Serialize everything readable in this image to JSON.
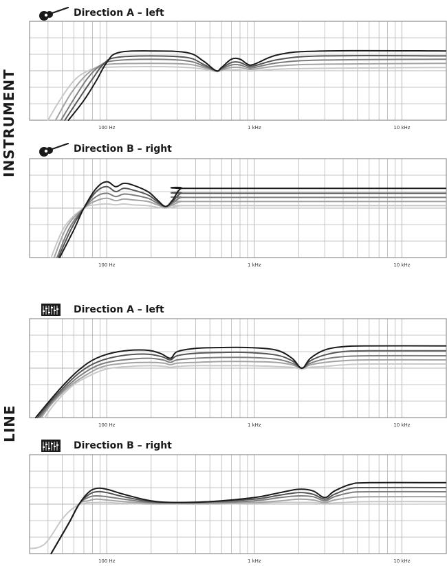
{
  "sections": {
    "instrument": "INSTRUMENT",
    "line": "LINE"
  },
  "panels": [
    {
      "title": "Direction A – left",
      "icon": "guitar-icon"
    },
    {
      "title": "Direction B – right",
      "icon": "guitar-icon"
    },
    {
      "title": "Direction A – left",
      "icon": "mixer-icon"
    },
    {
      "title": "Direction B – right",
      "icon": "mixer-icon"
    }
  ],
  "colors": {
    "grid": "#b5b5b5",
    "frame": "#7a7a7a",
    "series": [
      "#1a1a1a",
      "#555555",
      "#7d7d7d",
      "#a2a2a2",
      "#c8c8c8"
    ]
  },
  "chart_data": [
    {
      "type": "line",
      "title": "Direction A – left",
      "x_scale": "log",
      "xlim": [
        30,
        20000
      ],
      "ylim": [
        -3,
        3
      ],
      "grid": true,
      "x_tick_labels": [
        {
          "x": 100,
          "label": "100 Hz"
        },
        {
          "x": 1000,
          "label": "1 kHz"
        },
        {
          "x": 10000,
          "label": "10 kHz"
        }
      ],
      "series": [
        {
          "x": [
            55,
            70,
            85,
            100,
            120,
            200,
            350,
            450,
            550,
            600,
            700,
            800,
            900,
            1000,
            1500,
            3000,
            20000
          ],
          "y": [
            -3,
            -1.8,
            -0.6,
            0.5,
            1.1,
            1.2,
            1.1,
            0.6,
            0,
            0.2,
            0.7,
            0.7,
            0.4,
            0.4,
            1,
            1.2,
            1.2
          ]
        },
        {
          "x": [
            52,
            66,
            80,
            95,
            115,
            200,
            350,
            450,
            550,
            600,
            700,
            800,
            900,
            1000,
            1500,
            3000,
            20000
          ],
          "y": [
            -3,
            -1.6,
            -0.5,
            0.4,
            0.8,
            0.9,
            0.8,
            0.4,
            0,
            0.15,
            0.5,
            0.5,
            0.3,
            0.3,
            0.7,
            0.9,
            0.9
          ]
        },
        {
          "x": [
            49,
            62,
            75,
            90,
            110,
            200,
            350,
            450,
            550,
            600,
            700,
            800,
            900,
            1000,
            1500,
            3000,
            20000
          ],
          "y": [
            -3,
            -1.5,
            -0.4,
            0.3,
            0.6,
            0.7,
            0.6,
            0.3,
            0,
            0.1,
            0.35,
            0.35,
            0.2,
            0.2,
            0.5,
            0.65,
            0.7
          ]
        },
        {
          "x": [
            45,
            57,
            70,
            85,
            105,
            200,
            350,
            450,
            550,
            600,
            700,
            800,
            900,
            1000,
            1500,
            3000,
            20000
          ],
          "y": [
            -3,
            -1.4,
            -0.4,
            0.2,
            0.4,
            0.45,
            0.4,
            0.2,
            0,
            0.05,
            0.2,
            0.2,
            0.1,
            0.1,
            0.3,
            0.4,
            0.45
          ]
        },
        {
          "x": [
            40,
            48,
            60,
            75,
            95,
            200,
            350,
            450,
            550,
            600,
            700,
            800,
            900,
            1000,
            1500,
            3000,
            20000
          ],
          "y": [
            -3,
            -1.8,
            -0.6,
            0,
            0.2,
            0.25,
            0.2,
            0.1,
            -0.05,
            0,
            0.05,
            0.05,
            0,
            0,
            0.1,
            0.15,
            0.2
          ]
        }
      ]
    },
    {
      "type": "line",
      "title": "Direction B – right",
      "x_scale": "log",
      "xlim": [
        30,
        20000
      ],
      "ylim": [
        -3,
        3
      ],
      "grid": true,
      "x_tick_labels": [
        {
          "x": 100,
          "label": "100 Hz"
        },
        {
          "x": 1000,
          "label": "1 kHz"
        },
        {
          "x": 10000,
          "label": "10 kHz"
        }
      ],
      "series": [
        {
          "x": [
            48,
            60,
            70,
            85,
            100,
            115,
            130,
            150,
            190,
            220,
            250,
            280,
            320,
            400,
            20000
          ],
          "y": [
            -3,
            -1.3,
            0,
            1.2,
            1.6,
            1.3,
            1.5,
            1.4,
            1.0,
            0.5,
            0.1,
            0.5,
            1.2,
            1.2,
            1.2
          ]
        },
        {
          "x": [
            47,
            58,
            70,
            85,
            100,
            115,
            130,
            150,
            190,
            220,
            250,
            280,
            320,
            400,
            20000
          ],
          "y": [
            -3,
            -1.2,
            0,
            1.0,
            1.3,
            1.0,
            1.2,
            1.1,
            0.8,
            0.4,
            0.1,
            0.4,
            0.9,
            0.9,
            0.9
          ]
        },
        {
          "x": [
            46,
            56,
            70,
            85,
            100,
            115,
            130,
            150,
            190,
            220,
            250,
            280,
            320,
            400,
            20000
          ],
          "y": [
            -3,
            -1.2,
            0,
            0.7,
            0.9,
            0.7,
            0.85,
            0.8,
            0.6,
            0.3,
            0.1,
            0.3,
            0.65,
            0.65,
            0.65
          ]
        },
        {
          "x": [
            44,
            54,
            70,
            85,
            100,
            115,
            130,
            150,
            190,
            220,
            250,
            280,
            320,
            400,
            20000
          ],
          "y": [
            -3,
            -1.1,
            0,
            0.45,
            0.6,
            0.45,
            0.55,
            0.5,
            0.4,
            0.2,
            0.05,
            0.2,
            0.4,
            0.4,
            0.4
          ]
        },
        {
          "x": [
            42,
            52,
            70,
            85,
            100,
            115,
            130,
            150,
            190,
            220,
            250,
            280,
            320,
            400,
            20000
          ],
          "y": [
            -3,
            -1.1,
            0,
            0.2,
            0.25,
            0.2,
            0.25,
            0.2,
            0.15,
            0.05,
            0,
            0.05,
            0.15,
            0.15,
            0.15
          ]
        }
      ]
    },
    {
      "type": "line",
      "title": "Direction A – left",
      "x_scale": "log",
      "xlim": [
        30,
        20000
      ],
      "ylim": [
        -3,
        3
      ],
      "grid": true,
      "x_tick_labels": [
        {
          "x": 100,
          "label": "100 Hz"
        },
        {
          "x": 1000,
          "label": "1 kHz"
        },
        {
          "x": 10000,
          "label": "10 kHz"
        }
      ],
      "series": [
        {
          "x": [
            33,
            40,
            50,
            65,
            85,
            120,
            180,
            230,
            270,
            300,
            400,
            600,
            900,
            1400,
            1800,
            2100,
            2400,
            3000,
            4000,
            6000,
            20000
          ],
          "y": [
            -3,
            -2.1,
            -1.1,
            -0.1,
            0.6,
            1.0,
            1.1,
            0.9,
            0.6,
            1.0,
            1.2,
            1.25,
            1.25,
            1.1,
            0.6,
            0,
            0.6,
            1.1,
            1.3,
            1.35,
            1.35
          ]
        },
        {
          "x": [
            34,
            41,
            52,
            67,
            88,
            125,
            185,
            235,
            270,
            300,
            400,
            600,
            900,
            1400,
            1800,
            2100,
            2400,
            3000,
            4000,
            6000,
            20000
          ],
          "y": [
            -3,
            -2.1,
            -1.1,
            -0.2,
            0.4,
            0.75,
            0.85,
            0.7,
            0.5,
            0.75,
            0.9,
            0.95,
            0.95,
            0.8,
            0.45,
            0,
            0.45,
            0.8,
            1.0,
            1.05,
            1.05
          ]
        },
        {
          "x": [
            35,
            42,
            54,
            70,
            92,
            130,
            190,
            240,
            270,
            300,
            400,
            600,
            900,
            1400,
            1800,
            2100,
            2400,
            3000,
            4000,
            6000,
            20000
          ],
          "y": [
            -3,
            -2.1,
            -1.1,
            -0.3,
            0.25,
            0.5,
            0.6,
            0.5,
            0.35,
            0.5,
            0.6,
            0.65,
            0.65,
            0.55,
            0.3,
            0,
            0.3,
            0.55,
            0.7,
            0.75,
            0.75
          ]
        },
        {
          "x": [
            36,
            43,
            56,
            73,
            95,
            135,
            195,
            245,
            270,
            300,
            400,
            600,
            900,
            1400,
            1800,
            2100,
            2400,
            3000,
            4000,
            6000,
            20000
          ],
          "y": [
            -3,
            -2.1,
            -1.1,
            -0.4,
            0.1,
            0.3,
            0.35,
            0.3,
            0.2,
            0.3,
            0.35,
            0.4,
            0.4,
            0.35,
            0.2,
            0,
            0.2,
            0.35,
            0.45,
            0.5,
            0.5
          ]
        },
        {
          "x": [
            38,
            45,
            58,
            75,
            100,
            140,
            200,
            250,
            270,
            300,
            400,
            600,
            900,
            1400,
            1800,
            2100,
            2400,
            3000,
            4000,
            6000,
            20000
          ],
          "y": [
            -3,
            -2.1,
            -1.1,
            -0.5,
            -0.05,
            0.1,
            0.15,
            0.1,
            0.05,
            0.1,
            0.15,
            0.15,
            0.15,
            0.1,
            0.05,
            -0.05,
            0.05,
            0.1,
            0.2,
            0.25,
            0.25
          ]
        }
      ]
    },
    {
      "type": "line",
      "title": "Direction B – right",
      "x_scale": "log",
      "xlim": [
        30,
        20000
      ],
      "ylim": [
        -3,
        3
      ],
      "grid": true,
      "x_tick_labels": [
        {
          "x": 100,
          "label": "100 Hz"
        },
        {
          "x": 1000,
          "label": "1 kHz"
        },
        {
          "x": 10000,
          "label": "10 kHz"
        }
      ],
      "series": [
        {
          "x": [
            42,
            55,
            65,
            75,
            85,
            100,
            130,
            200,
            300,
            500,
            1000,
            1500,
            2000,
            2500,
            3000,
            3500,
            4500,
            6000,
            20000
          ],
          "y": [
            -3,
            -1.2,
            0,
            0.7,
            0.95,
            0.9,
            0.6,
            0.2,
            0.1,
            0.15,
            0.4,
            0.7,
            0.9,
            0.8,
            0.4,
            0.8,
            1.2,
            1.3,
            1.3
          ]
        },
        {
          "x": [
            42,
            55,
            65,
            75,
            85,
            100,
            130,
            200,
            300,
            500,
            1000,
            1500,
            2000,
            2500,
            3000,
            3500,
            4500,
            6000,
            20000
          ],
          "y": [
            -3,
            -1.2,
            0,
            0.55,
            0.75,
            0.7,
            0.45,
            0.15,
            0.1,
            0.15,
            0.3,
            0.55,
            0.7,
            0.6,
            0.3,
            0.6,
            0.95,
            1.0,
            1.0
          ]
        },
        {
          "x": [
            42,
            55,
            65,
            75,
            85,
            100,
            130,
            200,
            300,
            500,
            1000,
            1500,
            2000,
            2500,
            3000,
            3500,
            4500,
            6000,
            20000
          ],
          "y": [
            -3,
            -1.2,
            0,
            0.4,
            0.5,
            0.45,
            0.3,
            0.1,
            0.1,
            0.1,
            0.2,
            0.4,
            0.5,
            0.45,
            0.2,
            0.45,
            0.7,
            0.75,
            0.75
          ]
        },
        {
          "x": [
            42,
            55,
            65,
            75,
            85,
            100,
            130,
            200,
            300,
            500,
            1000,
            1500,
            2000,
            2500,
            3000,
            3500,
            4500,
            6000,
            20000
          ],
          "y": [
            -3,
            -1.2,
            0,
            0.2,
            0.3,
            0.25,
            0.15,
            0.05,
            0.05,
            0.05,
            0.1,
            0.2,
            0.3,
            0.25,
            0.1,
            0.25,
            0.4,
            0.45,
            0.45
          ]
        },
        {
          "x": [
            30,
            35,
            40,
            50,
            60,
            70,
            85,
            100,
            130,
            200,
            300,
            500,
            1000,
            1500,
            2000,
            2500,
            3000,
            4000,
            6000,
            20000
          ],
          "y": [
            -2.7,
            -2.6,
            -2.2,
            -0.9,
            -0.2,
            0.05,
            0.1,
            0.1,
            0.05,
            0,
            0,
            0,
            0.05,
            0.1,
            0.1,
            0.1,
            0.05,
            0.1,
            0.15,
            0.15
          ]
        }
      ]
    }
  ]
}
